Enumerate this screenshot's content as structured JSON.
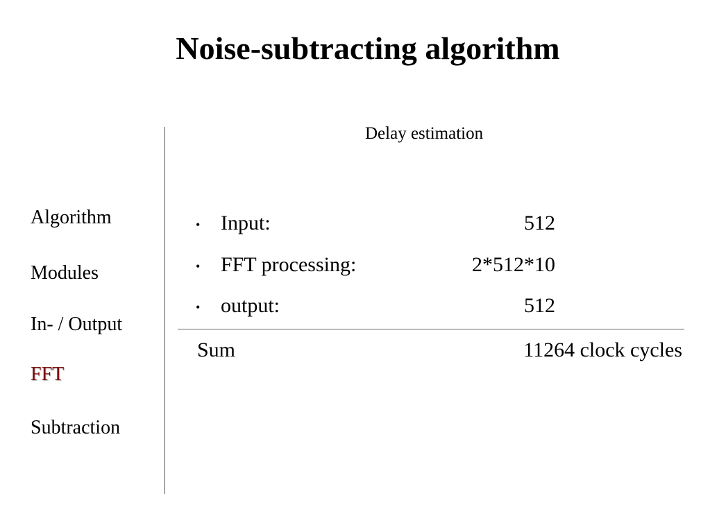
{
  "header": {
    "title": "Noise-subtracting algorithm"
  },
  "nav": {
    "items": [
      "Algorithm",
      "Modules",
      "In- / Output",
      "FFT",
      "Subtraction"
    ]
  },
  "content": {
    "subtitle": "Delay estimation",
    "items": [
      {
        "label": "Input:",
        "value": "512"
      },
      {
        "label": "FFT processing:",
        "value": "2*512*10"
      },
      {
        "label": "output:",
        "value": "512"
      }
    ],
    "sum": {
      "label": "Sum",
      "value": "11264 clock cycles"
    }
  }
}
